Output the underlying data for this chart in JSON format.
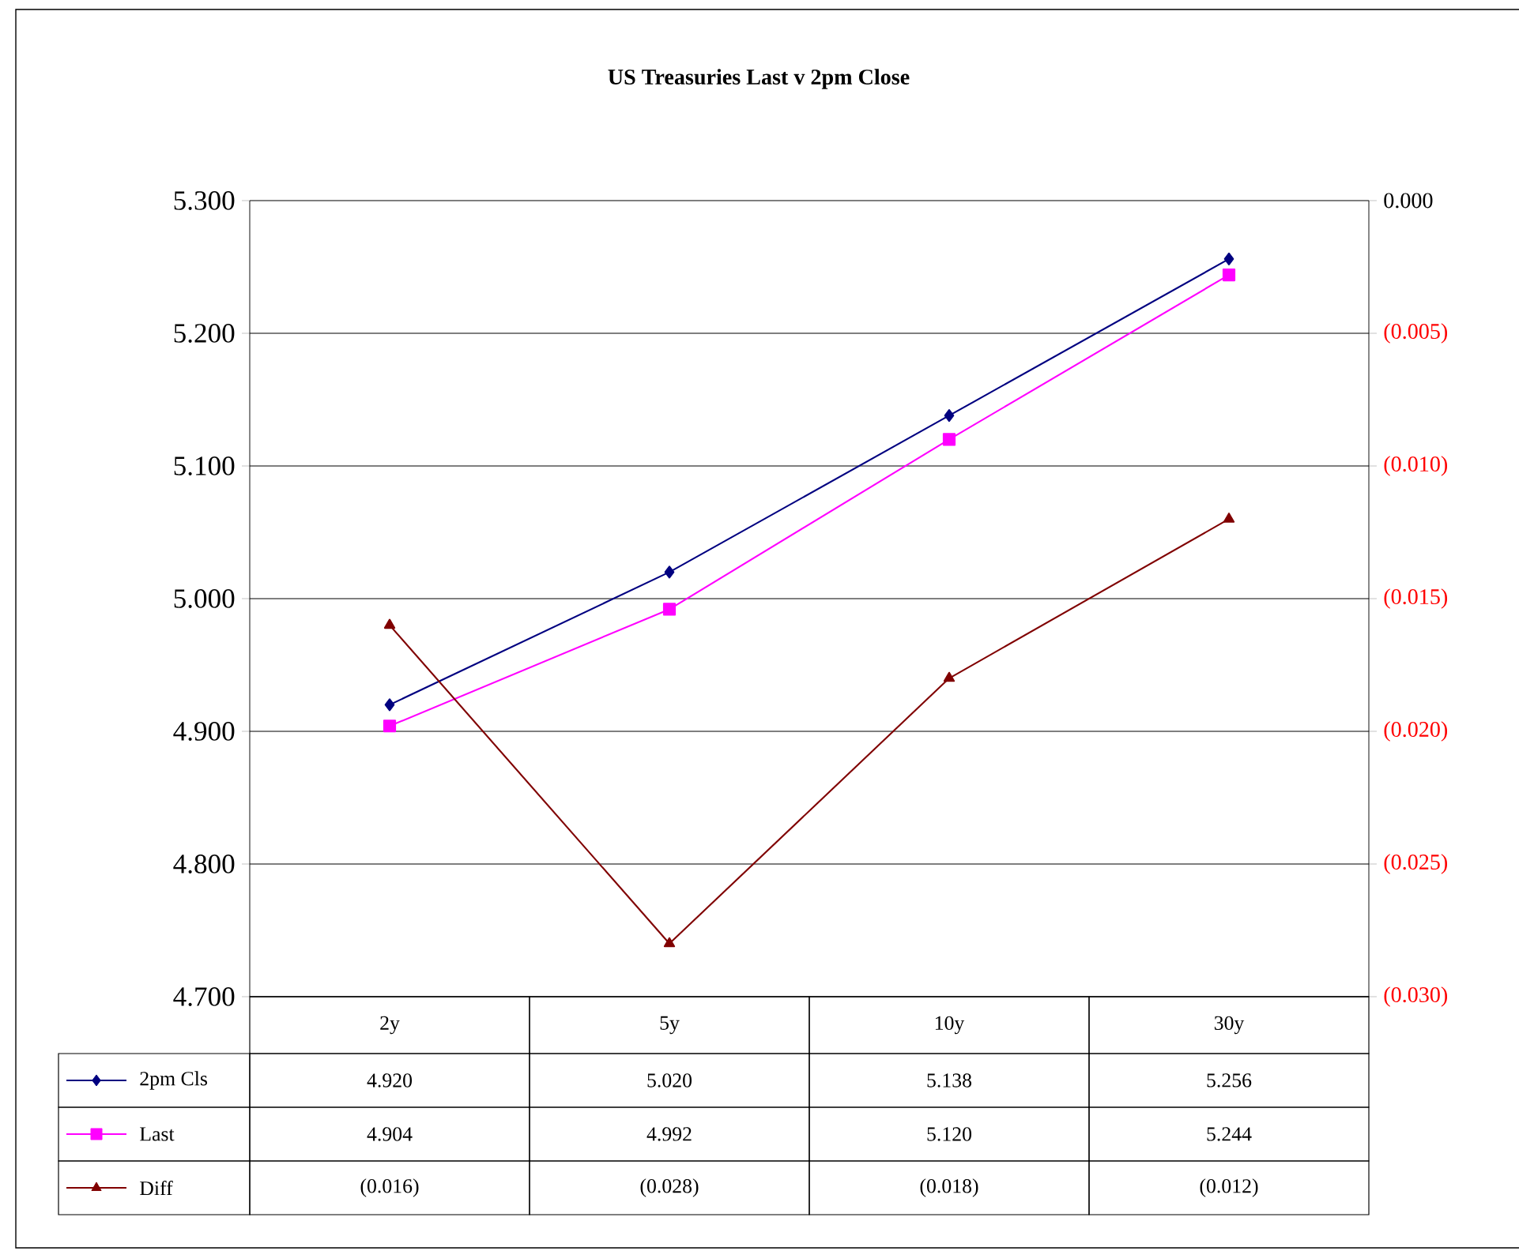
{
  "chart_data": {
    "type": "line",
    "title": "US Treasuries Last v 2pm Close",
    "categories": [
      "2y",
      "5y",
      "10y",
      "30y"
    ],
    "series": [
      {
        "name": "2pm Cls",
        "color": "#000080",
        "marker": "diamond",
        "values": [
          4.92,
          5.02,
          5.138,
          5.256
        ],
        "value_labels": [
          "4.920",
          "5.020",
          "5.138",
          "5.256"
        ]
      },
      {
        "name": "Last",
        "color": "#ff00ff",
        "marker": "square",
        "values": [
          4.904,
          4.992,
          5.12,
          5.244
        ],
        "value_labels": [
          "4.904",
          "4.992",
          "5.120",
          "5.244"
        ]
      },
      {
        "name": "Diff",
        "color": "#800000",
        "marker": "triangle",
        "axis": "y2",
        "values": [
          -0.016,
          -0.028,
          -0.018,
          -0.012
        ],
        "value_labels": [
          "(0.016)",
          "(0.028)",
          "(0.018)",
          "(0.012)"
        ]
      }
    ],
    "ylim": [
      4.7,
      5.3
    ],
    "yticks": [
      {
        "value": 4.7,
        "label": "4.700"
      },
      {
        "value": 4.8,
        "label": "4.800"
      },
      {
        "value": 4.9,
        "label": "4.900"
      },
      {
        "value": 5.0,
        "label": "5.000"
      },
      {
        "value": 5.1,
        "label": "5.100"
      },
      {
        "value": 5.2,
        "label": "5.200"
      },
      {
        "value": 5.3,
        "label": "5.300"
      }
    ],
    "y2lim": [
      -0.03,
      0
    ],
    "y2ticks": [
      {
        "value": -0.03,
        "label": "(0.030)"
      },
      {
        "value": -0.025,
        "label": "(0.025)"
      },
      {
        "value": -0.02,
        "label": "(0.020)"
      },
      {
        "value": -0.015,
        "label": "(0.015)"
      },
      {
        "value": -0.01,
        "label": "(0.010)"
      },
      {
        "value": -0.005,
        "label": "(0.005)"
      },
      {
        "value": 0,
        "label": "0.000"
      }
    ],
    "grid": "y",
    "legend": "bottom left",
    "line_style": "solid"
  }
}
